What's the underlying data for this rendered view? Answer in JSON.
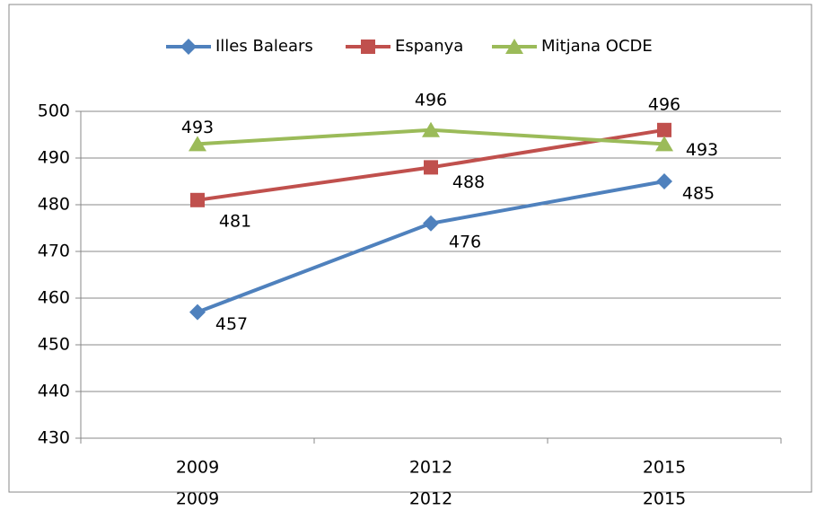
{
  "chart_data": {
    "type": "line",
    "categories": [
      "2009",
      "2012",
      "2015"
    ],
    "series": [
      {
        "name": "Illes Balears",
        "color": "#4f81bd",
        "marker": "diamond",
        "values": [
          457,
          476,
          485
        ]
      },
      {
        "name": "Espanya",
        "color": "#c0504d",
        "marker": "square",
        "values": [
          481,
          488,
          496
        ]
      },
      {
        "name": "Mitjana OCDE",
        "color": "#9bbb59",
        "marker": "triangle",
        "values": [
          493,
          496,
          493
        ]
      }
    ],
    "ylim": [
      430,
      500
    ],
    "yticks": [
      430,
      440,
      450,
      460,
      470,
      480,
      490,
      500
    ],
    "grid": true,
    "legend": "top"
  }
}
